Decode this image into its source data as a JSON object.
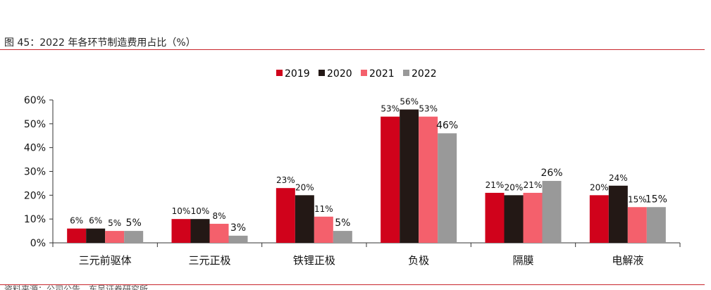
{
  "figure": {
    "title": "图 45：2022 年各环节制造费用占比（%）",
    "source": "资料来源：公司公告，东吴证券研究所"
  },
  "chart_data": {
    "type": "bar",
    "title": "图 45：2022 年各环节制造费用占比（%）",
    "xlabel": "",
    "ylabel": "",
    "ylim": [
      0,
      60
    ],
    "yticks": [
      0,
      10,
      20,
      30,
      40,
      50,
      60
    ],
    "ytick_labels": [
      "0%",
      "10%",
      "20%",
      "30%",
      "40%",
      "50%",
      "60%"
    ],
    "grid": false,
    "legend_position": "top",
    "categories": [
      "三元前驱体",
      "三元正极",
      "铁锂正极",
      "负极",
      "隔膜",
      "电解液"
    ],
    "series": [
      {
        "name": "2019",
        "color": "#d0021b",
        "values": [
          6,
          10,
          23,
          53,
          21,
          20
        ],
        "labels": [
          "6%",
          "10%",
          "23%",
          "53%",
          "21%",
          "20%"
        ]
      },
      {
        "name": "2020",
        "color": "#231815",
        "values": [
          6,
          10,
          20,
          56,
          20,
          24
        ],
        "labels": [
          "6%",
          "10%",
          "20%",
          "56%",
          "20%",
          "24%"
        ]
      },
      {
        "name": "2021",
        "color": "#f4606c",
        "values": [
          5,
          8,
          11,
          53,
          21,
          15
        ],
        "labels": [
          "5%",
          "8%",
          "11%",
          "53%",
          "21%",
          "15%"
        ]
      },
      {
        "name": "2022",
        "color": "#999999",
        "values": [
          5,
          3,
          5,
          46,
          26,
          15
        ],
        "labels": [
          "5%",
          "3%",
          "5%",
          "46%",
          "26%",
          "15%"
        ]
      }
    ]
  }
}
